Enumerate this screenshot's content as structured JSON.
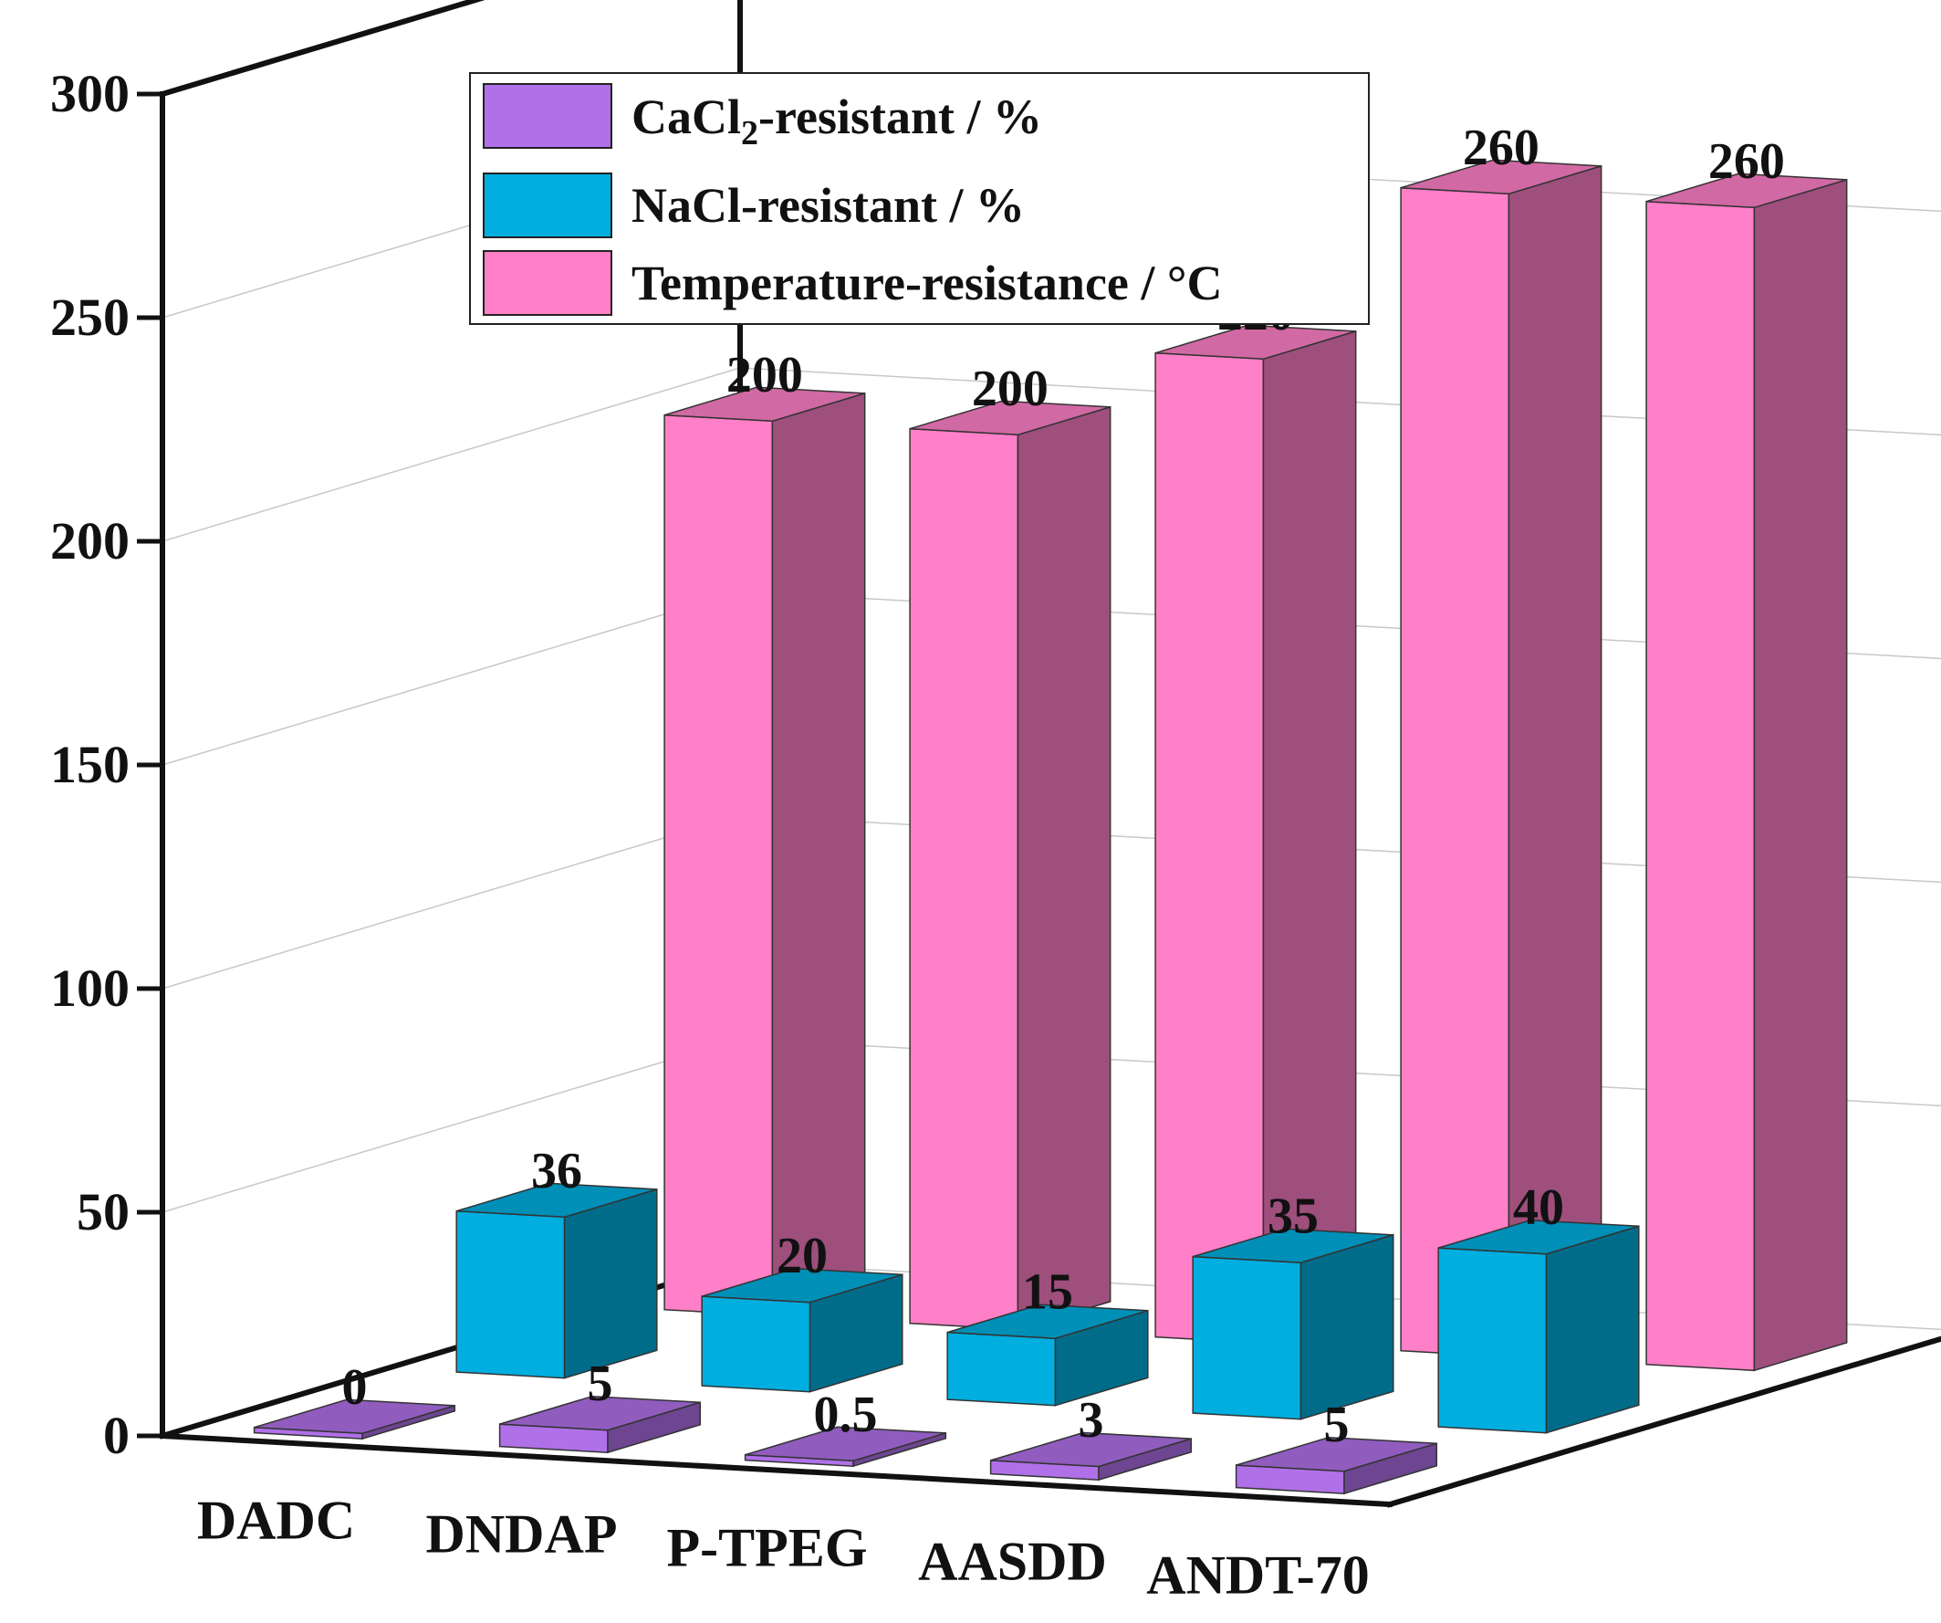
{
  "chart_data": {
    "type": "bar",
    "categories": [
      "DADC",
      "DNDAP",
      "P-TPEG",
      "AASDD",
      "ANDT-70"
    ],
    "series": [
      {
        "name": "CaCl2-resistant / %",
        "legend_main": "CaCl",
        "legend_sub": "2",
        "legend_rest": "-resistant / %",
        "color": "#b070e8",
        "values": [
          0,
          5,
          0.5,
          3,
          5
        ],
        "labels": [
          "0",
          "5",
          "0.5",
          "3",
          "5"
        ]
      },
      {
        "name": "NaCl-resistant / %",
        "color": "#00aedf",
        "values": [
          36,
          20,
          15,
          35,
          40
        ],
        "labels": [
          "36",
          "20",
          "15",
          "35",
          "40"
        ]
      },
      {
        "name": "Temperature-resistance / °C",
        "color": "#ff80c8",
        "values": [
          200,
          200,
          220,
          260,
          260
        ],
        "labels": [
          "200",
          "200",
          "220",
          "260",
          "260"
        ]
      }
    ],
    "ylim": [
      0,
      300
    ],
    "yticks": [
      "0",
      "50",
      "100",
      "150",
      "200",
      "250",
      "300"
    ],
    "grid": true,
    "legend": "top-center",
    "projection": "3d"
  }
}
